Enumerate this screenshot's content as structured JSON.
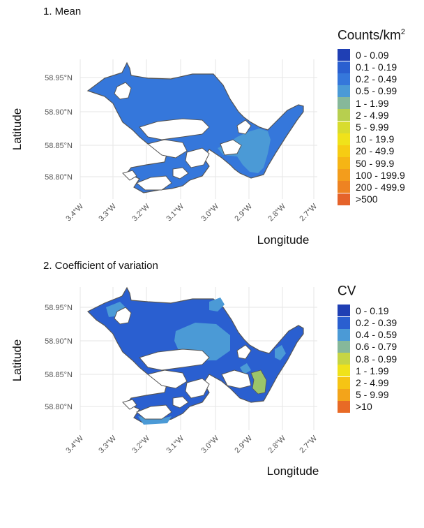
{
  "panels": [
    {
      "title": "1. Mean",
      "xlabel": "Longitude",
      "ylabel": "Latitude",
      "lat_ticks": [
        "58.80°N",
        "58.85°N",
        "58.90°N",
        "58.95°N"
      ],
      "lon_ticks": [
        "3.4°W",
        "3.3°W",
        "3.2°W",
        "3.1°W",
        "3.0°W",
        "2.9°W",
        "2.8°W",
        "2.7°W"
      ],
      "legend": {
        "title": "Counts/km",
        "title_sup": "2",
        "entries": [
          {
            "label": "0 - 0.09",
            "color": "#1f3fb4"
          },
          {
            "label": "0.1 - 0.19",
            "color": "#2a5fd0"
          },
          {
            "label": "0.2 - 0.49",
            "color": "#3577db"
          },
          {
            "label": "0.5 - 0.99",
            "color": "#4b9ad6"
          },
          {
            "label": "1 - 1.99",
            "color": "#86b89a"
          },
          {
            "label": "2 - 4.99",
            "color": "#b7cf4f"
          },
          {
            "label": "5 - 9.99",
            "color": "#d8dc2e"
          },
          {
            "label": "10 - 19.9",
            "color": "#f0e21a"
          },
          {
            "label": "20 - 49.9",
            "color": "#f6cc13"
          },
          {
            "label": "50 - 99.9",
            "color": "#f6b515"
          },
          {
            "label": "100 - 199.9",
            "color": "#f39d1c"
          },
          {
            "label": "200 - 499.9",
            "color": "#ee8322"
          },
          {
            "label": ">500",
            "color": "#e5632a"
          }
        ]
      }
    },
    {
      "title": "2. Coefficient of variation",
      "xlabel": "Longitude",
      "ylabel": "Latitude",
      "lat_ticks": [
        "58.80°N",
        "58.85°N",
        "58.90°N",
        "58.95°N"
      ],
      "lon_ticks": [
        "3.4°W",
        "3.3°W",
        "3.2°W",
        "3.1°W",
        "3.0°W",
        "2.9°W",
        "2.8°W",
        "2.7°W"
      ],
      "legend": {
        "title": "CV",
        "title_sup": "",
        "entries": [
          {
            "label": "0 - 0.19",
            "color": "#1f3fb4"
          },
          {
            "label": "0.2 - 0.39",
            "color": "#2a5fd0"
          },
          {
            "label": "0.4 - 0.59",
            "color": "#4b9ad6"
          },
          {
            "label": "0.6 - 0.79",
            "color": "#86b89a"
          },
          {
            "label": "0.8 - 0.99",
            "color": "#c6d544"
          },
          {
            "label": "1 - 1.99",
            "color": "#f0e21a"
          },
          {
            "label": "2 - 4.99",
            "color": "#f6c414"
          },
          {
            "label": "5 - 9.99",
            "color": "#f3a41a"
          },
          {
            "label": ">10",
            "color": "#e86a26"
          }
        ]
      }
    }
  ],
  "colors": {
    "base_fill": "#3577db",
    "deep_fill": "#2a5fd0",
    "light_fill": "#4b9ad6",
    "green_fill": "#9cc56a",
    "land": "#ffffff",
    "outline": "#555555",
    "grid": "#e6e6e6"
  }
}
